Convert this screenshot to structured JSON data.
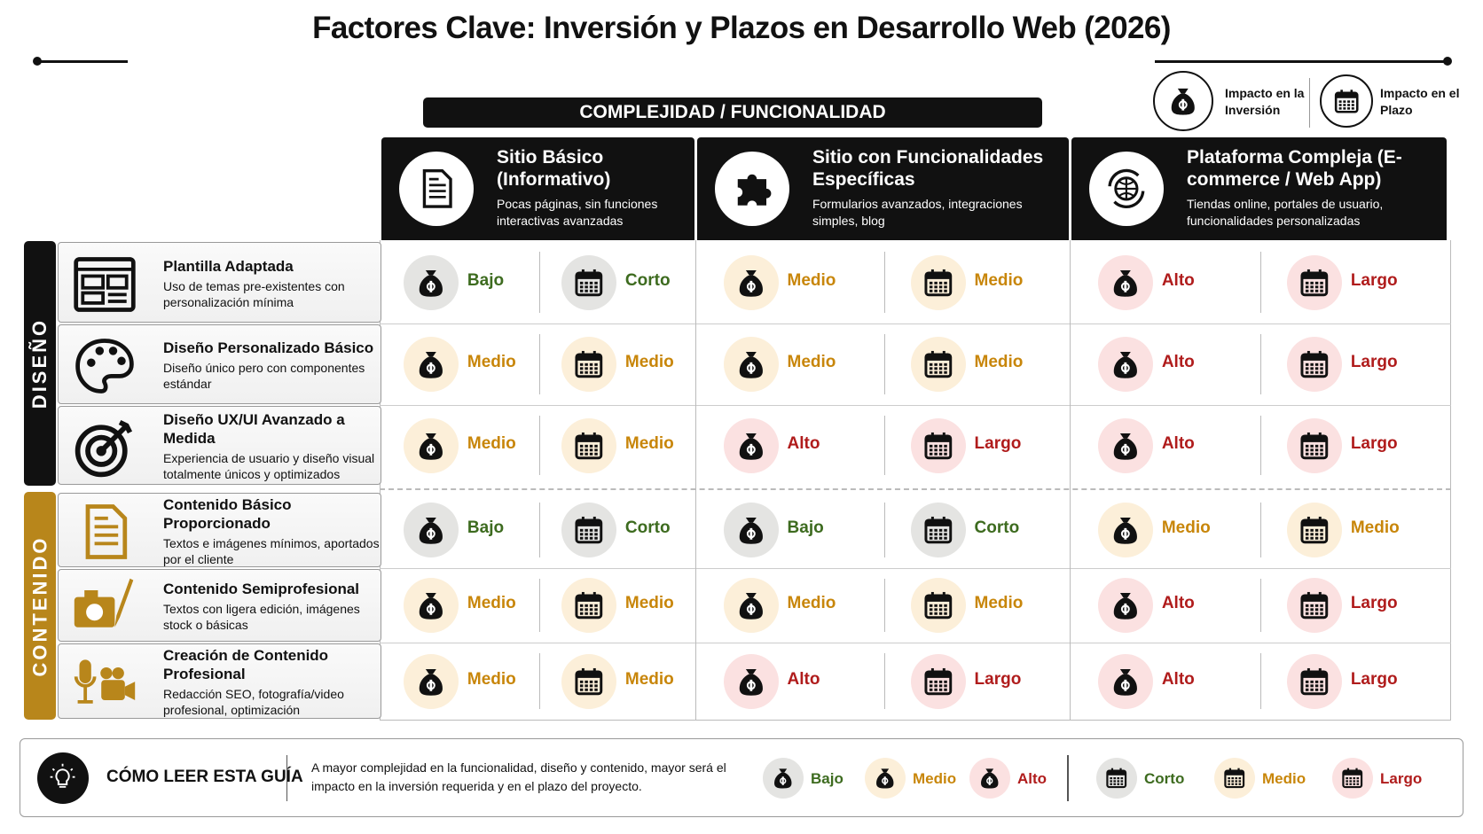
{
  "title": "Factores Clave: Inversión y Plazos en Desarrollo Web (2026)",
  "legend": {
    "inversion": "Impacto en la Inversión",
    "plazo": "Impacto en el Plazo"
  },
  "header": "COMPLEJIDAD / FUNCIONALIDAD",
  "columns": [
    {
      "title": "Sitio Básico (Informativo)",
      "description": "Pocas páginas, sin funciones interactivas avanzadas"
    },
    {
      "title": "Sitio con Funcionalidades Específicas",
      "description": "Formularios avanzados, integraciones simples, blog"
    },
    {
      "title": "Plataforma Compleja (E-commerce / Web App)",
      "description": "Tiendas online, portales de usuario, funcionalidades personalizadas"
    }
  ],
  "groups": [
    {
      "label": "DISEÑO",
      "color": "#111111",
      "rows": [
        {
          "title": "Plantilla Adaptada",
          "description": "Uso de temas pre-existentes con personalización mínima",
          "cells": [
            {
              "inversion": "Bajo",
              "plazo": "Corto"
            },
            {
              "inversion": "Medio",
              "plazo": "Medio"
            },
            {
              "inversion": "Alto",
              "plazo": "Largo"
            }
          ]
        },
        {
          "title": "Diseño Personalizado Básico",
          "description": "Diseño único pero con componentes estándar",
          "cells": [
            {
              "inversion": "Medio",
              "plazo": "Medio"
            },
            {
              "inversion": "Medio",
              "plazo": "Medio"
            },
            {
              "inversion": "Alto",
              "plazo": "Largo"
            }
          ]
        },
        {
          "title": "Diseño UX/UI Avanzado a Medida",
          "description": "Experiencia de usuario y diseño visual totalmente únicos y optimizados",
          "cells": [
            {
              "inversion": "Medio",
              "plazo": "Medio"
            },
            {
              "inversion": "Alto",
              "plazo": "Largo"
            },
            {
              "inversion": "Alto",
              "plazo": "Largo"
            }
          ]
        }
      ]
    },
    {
      "label": "CONTENIDO",
      "color": "#b8861b",
      "rows": [
        {
          "title": "Contenido Básico Proporcionado",
          "description": "Textos e imágenes mínimos, aportados por el cliente",
          "cells": [
            {
              "inversion": "Bajo",
              "plazo": "Corto"
            },
            {
              "inversion": "Bajo",
              "plazo": "Corto"
            },
            {
              "inversion": "Medio",
              "plazo": "Medio"
            }
          ]
        },
        {
          "title": "Contenido Semiprofesional",
          "description": "Textos con ligera edición, imágenes stock o básicas",
          "cells": [
            {
              "inversion": "Medio",
              "plazo": "Medio"
            },
            {
              "inversion": "Medio",
              "plazo": "Medio"
            },
            {
              "inversion": "Alto",
              "plazo": "Largo"
            }
          ]
        },
        {
          "title": "Creación de Contenido Profesional",
          "description": "Redacción SEO, fotografía/video profesional, optimización",
          "cells": [
            {
              "inversion": "Medio",
              "plazo": "Medio"
            },
            {
              "inversion": "Alto",
              "plazo": "Largo"
            },
            {
              "inversion": "Alto",
              "plazo": "Largo"
            }
          ]
        }
      ]
    }
  ],
  "guide": {
    "title": "CÓMO LEER ESTA GUÍA",
    "text": "A mayor complejidad en la funcionalidad, diseño y contenido, mayor será el impacto en la inversión requerida y en el plazo del proyecto.",
    "inversion": [
      {
        "label": "Bajo",
        "color": "#3d6b1f",
        "background": "#e4e4e2"
      },
      {
        "label": "Medio",
        "color": "#c8860a",
        "background": "#fcefd9"
      },
      {
        "label": "Alto",
        "color": "#b01c1c",
        "background": "#fbe1e1"
      }
    ],
    "plazo": [
      {
        "label": "Corto",
        "color": "#3d6b1f",
        "background": "#e4e4e2"
      },
      {
        "label": "Medio",
        "color": "#c8860a",
        "background": "#fcefd9"
      },
      {
        "label": "Largo",
        "color": "#b01c1c",
        "background": "#fbe1e1"
      }
    ]
  }
}
